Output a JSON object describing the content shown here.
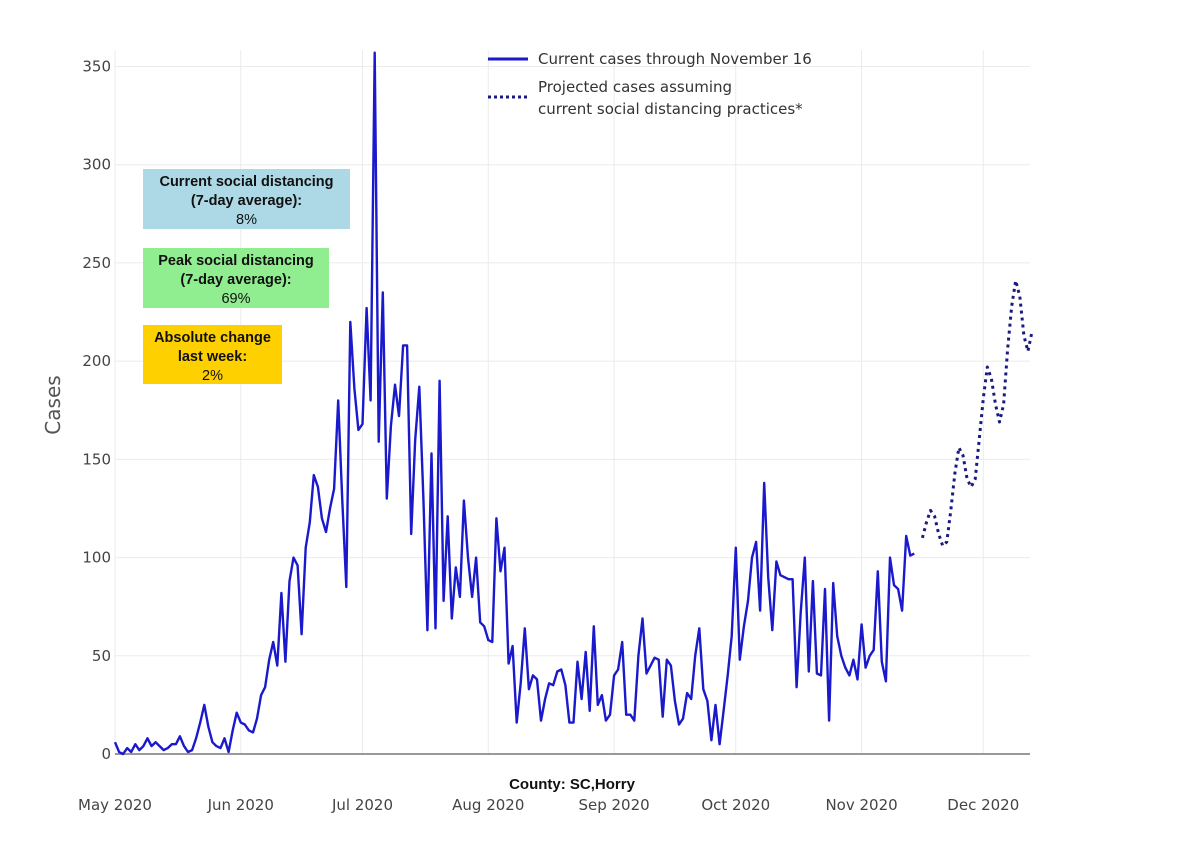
{
  "chart_data": {
    "type": "line",
    "ylabel": "Cases",
    "xlabel": "County: SC,Horry",
    "ylim": [
      0,
      360
    ],
    "y_ticks": [
      0,
      50,
      100,
      150,
      200,
      250,
      300,
      350
    ],
    "x_ticks": [
      {
        "date": "2020-05-01",
        "label": "May 2020"
      },
      {
        "date": "2020-06-01",
        "label": "Jun 2020"
      },
      {
        "date": "2020-07-01",
        "label": "Jul 2020"
      },
      {
        "date": "2020-08-01",
        "label": "Aug 2020"
      },
      {
        "date": "2020-09-01",
        "label": "Sep 2020"
      },
      {
        "date": "2020-10-01",
        "label": "Oct 2020"
      },
      {
        "date": "2020-11-01",
        "label": "Nov 2020"
      },
      {
        "date": "2020-12-01",
        "label": "Dec 2020"
      }
    ],
    "grid": true,
    "legend_position": "top-right",
    "series": [
      {
        "name": "Current cases through November 16",
        "style": "solid",
        "color": "#1a1acc",
        "points": [
          [
            "2020-05-01",
            6
          ],
          [
            "2020-05-02",
            1
          ],
          [
            "2020-05-03",
            0
          ],
          [
            "2020-05-04",
            3
          ],
          [
            "2020-05-05",
            1
          ],
          [
            "2020-05-06",
            5
          ],
          [
            "2020-05-07",
            2
          ],
          [
            "2020-05-08",
            4
          ],
          [
            "2020-05-09",
            8
          ],
          [
            "2020-05-10",
            4
          ],
          [
            "2020-05-11",
            6
          ],
          [
            "2020-05-12",
            4
          ],
          [
            "2020-05-13",
            2
          ],
          [
            "2020-05-14",
            3
          ],
          [
            "2020-05-15",
            5
          ],
          [
            "2020-05-16",
            5
          ],
          [
            "2020-05-17",
            9
          ],
          [
            "2020-05-18",
            4
          ],
          [
            "2020-05-19",
            1
          ],
          [
            "2020-05-20",
            2
          ],
          [
            "2020-05-21",
            8
          ],
          [
            "2020-05-22",
            16
          ],
          [
            "2020-05-23",
            25
          ],
          [
            "2020-05-24",
            14
          ],
          [
            "2020-05-25",
            6
          ],
          [
            "2020-05-26",
            4
          ],
          [
            "2020-05-27",
            3
          ],
          [
            "2020-05-28",
            8
          ],
          [
            "2020-05-29",
            1
          ],
          [
            "2020-05-30",
            12
          ],
          [
            "2020-05-31",
            21
          ],
          [
            "2020-06-01",
            16
          ],
          [
            "2020-06-02",
            15
          ],
          [
            "2020-06-03",
            12
          ],
          [
            "2020-06-04",
            11
          ],
          [
            "2020-06-05",
            18
          ],
          [
            "2020-06-06",
            30
          ],
          [
            "2020-06-07",
            34
          ],
          [
            "2020-06-08",
            48
          ],
          [
            "2020-06-09",
            57
          ],
          [
            "2020-06-10",
            45
          ],
          [
            "2020-06-11",
            82
          ],
          [
            "2020-06-12",
            47
          ],
          [
            "2020-06-13",
            88
          ],
          [
            "2020-06-14",
            100
          ],
          [
            "2020-06-15",
            96
          ],
          [
            "2020-06-16",
            61
          ],
          [
            "2020-06-17",
            105
          ],
          [
            "2020-06-18",
            118
          ],
          [
            "2020-06-19",
            142
          ],
          [
            "2020-06-20",
            136
          ],
          [
            "2020-06-21",
            120
          ],
          [
            "2020-06-22",
            113
          ],
          [
            "2020-06-23",
            125
          ],
          [
            "2020-06-24",
            135
          ],
          [
            "2020-06-25",
            180
          ],
          [
            "2020-06-26",
            130
          ],
          [
            "2020-06-27",
            85
          ],
          [
            "2020-06-28",
            220
          ],
          [
            "2020-06-29",
            186
          ],
          [
            "2020-06-30",
            165
          ],
          [
            "2020-07-01",
            168
          ],
          [
            "2020-07-02",
            227
          ],
          [
            "2020-07-03",
            180
          ],
          [
            "2020-07-04",
            357
          ],
          [
            "2020-07-05",
            159
          ],
          [
            "2020-07-06",
            235
          ],
          [
            "2020-07-07",
            130
          ],
          [
            "2020-07-08",
            167
          ],
          [
            "2020-07-09",
            188
          ],
          [
            "2020-07-10",
            172
          ],
          [
            "2020-07-11",
            208
          ],
          [
            "2020-07-12",
            208
          ],
          [
            "2020-07-13",
            112
          ],
          [
            "2020-07-14",
            160
          ],
          [
            "2020-07-15",
            187
          ],
          [
            "2020-07-16",
            130
          ],
          [
            "2020-07-17",
            63
          ],
          [
            "2020-07-18",
            153
          ],
          [
            "2020-07-19",
            64
          ],
          [
            "2020-07-20",
            190
          ],
          [
            "2020-07-21",
            78
          ],
          [
            "2020-07-22",
            121
          ],
          [
            "2020-07-23",
            69
          ],
          [
            "2020-07-24",
            95
          ],
          [
            "2020-07-25",
            80
          ],
          [
            "2020-07-26",
            129
          ],
          [
            "2020-07-27",
            100
          ],
          [
            "2020-07-28",
            80
          ],
          [
            "2020-07-29",
            100
          ],
          [
            "2020-07-30",
            67
          ],
          [
            "2020-07-31",
            65
          ],
          [
            "2020-08-01",
            58
          ],
          [
            "2020-08-02",
            57
          ],
          [
            "2020-08-03",
            120
          ],
          [
            "2020-08-04",
            93
          ],
          [
            "2020-08-05",
            105
          ],
          [
            "2020-08-06",
            46
          ],
          [
            "2020-08-07",
            55
          ],
          [
            "2020-08-08",
            16
          ],
          [
            "2020-08-09",
            36
          ],
          [
            "2020-08-10",
            64
          ],
          [
            "2020-08-11",
            33
          ],
          [
            "2020-08-12",
            40
          ],
          [
            "2020-08-13",
            38
          ],
          [
            "2020-08-14",
            17
          ],
          [
            "2020-08-15",
            28
          ],
          [
            "2020-08-16",
            36
          ],
          [
            "2020-08-17",
            35
          ],
          [
            "2020-08-18",
            42
          ],
          [
            "2020-08-19",
            43
          ],
          [
            "2020-08-20",
            35
          ],
          [
            "2020-08-21",
            16
          ],
          [
            "2020-08-22",
            16
          ],
          [
            "2020-08-23",
            47
          ],
          [
            "2020-08-24",
            28
          ],
          [
            "2020-08-25",
            52
          ],
          [
            "2020-08-26",
            22
          ],
          [
            "2020-08-27",
            65
          ],
          [
            "2020-08-28",
            25
          ],
          [
            "2020-08-29",
            30
          ],
          [
            "2020-08-30",
            17
          ],
          [
            "2020-08-31",
            20
          ],
          [
            "2020-09-01",
            40
          ],
          [
            "2020-09-02",
            43
          ],
          [
            "2020-09-03",
            57
          ],
          [
            "2020-09-04",
            20
          ],
          [
            "2020-09-05",
            20
          ],
          [
            "2020-09-06",
            17
          ],
          [
            "2020-09-07",
            50
          ],
          [
            "2020-09-08",
            69
          ],
          [
            "2020-09-09",
            41
          ],
          [
            "2020-09-10",
            45
          ],
          [
            "2020-09-11",
            49
          ],
          [
            "2020-09-12",
            48
          ],
          [
            "2020-09-13",
            19
          ],
          [
            "2020-09-14",
            48
          ],
          [
            "2020-09-15",
            45
          ],
          [
            "2020-09-16",
            27
          ],
          [
            "2020-09-17",
            15
          ],
          [
            "2020-09-18",
            18
          ],
          [
            "2020-09-19",
            31
          ],
          [
            "2020-09-20",
            28
          ],
          [
            "2020-09-21",
            50
          ],
          [
            "2020-09-22",
            64
          ],
          [
            "2020-09-23",
            33
          ],
          [
            "2020-09-24",
            27
          ],
          [
            "2020-09-25",
            7
          ],
          [
            "2020-09-26",
            25
          ],
          [
            "2020-09-27",
            5
          ],
          [
            "2020-09-28",
            22
          ],
          [
            "2020-09-29",
            40
          ],
          [
            "2020-09-30",
            60
          ],
          [
            "2020-10-01",
            105
          ],
          [
            "2020-10-02",
            48
          ],
          [
            "2020-10-03",
            65
          ],
          [
            "2020-10-04",
            78
          ],
          [
            "2020-10-05",
            100
          ],
          [
            "2020-10-06",
            108
          ],
          [
            "2020-10-07",
            73
          ],
          [
            "2020-10-08",
            138
          ],
          [
            "2020-10-09",
            90
          ],
          [
            "2020-10-10",
            63
          ],
          [
            "2020-10-11",
            98
          ],
          [
            "2020-10-12",
            91
          ],
          [
            "2020-10-13",
            90
          ],
          [
            "2020-10-14",
            89
          ],
          [
            "2020-10-15",
            89
          ],
          [
            "2020-10-16",
            34
          ],
          [
            "2020-10-17",
            72
          ],
          [
            "2020-10-18",
            100
          ],
          [
            "2020-10-19",
            42
          ],
          [
            "2020-10-20",
            88
          ],
          [
            "2020-10-21",
            41
          ],
          [
            "2020-10-22",
            40
          ],
          [
            "2020-10-23",
            84
          ],
          [
            "2020-10-24",
            17
          ],
          [
            "2020-10-25",
            87
          ],
          [
            "2020-10-26",
            60
          ],
          [
            "2020-10-27",
            50
          ],
          [
            "2020-10-28",
            44
          ],
          [
            "2020-10-29",
            40
          ],
          [
            "2020-10-30",
            48
          ],
          [
            "2020-10-31",
            38
          ],
          [
            "2020-11-01",
            66
          ],
          [
            "2020-11-02",
            44
          ],
          [
            "2020-11-03",
            50
          ],
          [
            "2020-11-04",
            53
          ],
          [
            "2020-11-05",
            93
          ],
          [
            "2020-11-06",
            47
          ],
          [
            "2020-11-07",
            37
          ],
          [
            "2020-11-08",
            100
          ],
          [
            "2020-11-09",
            86
          ],
          [
            "2020-11-10",
            84
          ],
          [
            "2020-11-11",
            73
          ],
          [
            "2020-11-12",
            111
          ],
          [
            "2020-11-13",
            101
          ],
          [
            "2020-11-14",
            102
          ]
        ]
      },
      {
        "name": "Projected cases assuming current social distancing practices*",
        "style": "dotted",
        "color": "#1a1a80",
        "points": [
          [
            "2020-11-16",
            110
          ],
          [
            "2020-11-17",
            118
          ],
          [
            "2020-11-18",
            124
          ],
          [
            "2020-11-19",
            121
          ],
          [
            "2020-11-20",
            112
          ],
          [
            "2020-11-21",
            106
          ],
          [
            "2020-11-22",
            108
          ],
          [
            "2020-11-23",
            124
          ],
          [
            "2020-11-24",
            143
          ],
          [
            "2020-11-25",
            156
          ],
          [
            "2020-11-26",
            152
          ],
          [
            "2020-11-27",
            140
          ],
          [
            "2020-11-28",
            136
          ],
          [
            "2020-11-29",
            140
          ],
          [
            "2020-11-30",
            160
          ],
          [
            "2020-12-01",
            181
          ],
          [
            "2020-12-02",
            197
          ],
          [
            "2020-12-03",
            191
          ],
          [
            "2020-12-04",
            178
          ],
          [
            "2020-12-05",
            169
          ],
          [
            "2020-12-06",
            178
          ],
          [
            "2020-12-07",
            206
          ],
          [
            "2020-12-08",
            228
          ],
          [
            "2020-12-09",
            241
          ],
          [
            "2020-12-10",
            233
          ],
          [
            "2020-12-11",
            213
          ],
          [
            "2020-12-12",
            205
          ],
          [
            "2020-12-13",
            215
          ]
        ]
      }
    ],
    "annotations": [
      {
        "lines": [
          "Current social distancing",
          "(7-day average):",
          "8%"
        ],
        "color": "#add8e6"
      },
      {
        "lines": [
          "Peak social distancing",
          "(7-day average):",
          "69%"
        ],
        "color": "#90ee90"
      },
      {
        "lines": [
          "Absolute change",
          "last week:",
          "2%"
        ],
        "color": "#ffd000"
      }
    ]
  }
}
